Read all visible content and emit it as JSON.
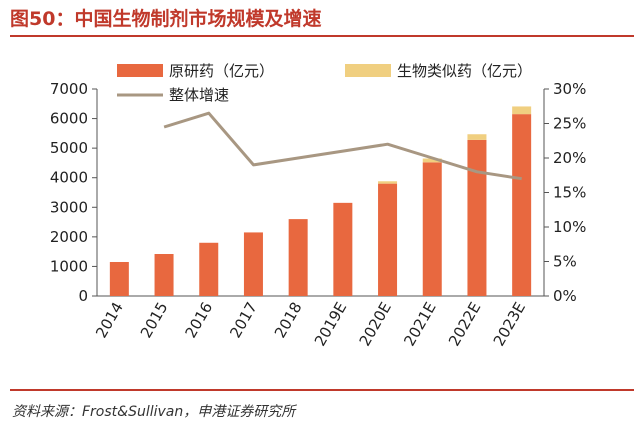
{
  "figure": {
    "title": "图50：中国生物制剂市场规模及增速",
    "source": "资料来源：Frost&Sullivan，申港证券研究所"
  },
  "colors": {
    "accent": "#c0392b",
    "series_original": "#e8683f",
    "series_biosimilar": "#f0cf80",
    "series_growth": "#a89782",
    "axis": "#555555"
  },
  "chart_data": {
    "type": "bar",
    "stacked": true,
    "categories": [
      "2014",
      "2015",
      "2016",
      "2017",
      "2018",
      "2019E",
      "2020E",
      "2021E",
      "2022E",
      "2023E"
    ],
    "series": [
      {
        "name": "原研药（亿元）",
        "kind": "bar",
        "axis": "left",
        "values": [
          1150,
          1420,
          1800,
          2150,
          2600,
          3150,
          3800,
          4520,
          5280,
          6150
        ]
      },
      {
        "name": "生物类似药（亿元）",
        "kind": "bar",
        "axis": "left",
        "values": [
          0,
          0,
          0,
          0,
          0,
          0,
          80,
          130,
          190,
          260
        ]
      },
      {
        "name": "整体增速",
        "kind": "line",
        "axis": "right",
        "values": [
          null,
          24.5,
          26.5,
          19.0,
          20.0,
          21.0,
          22.0,
          20.0,
          18.0,
          17.0
        ]
      }
    ],
    "y_left": {
      "min": 0,
      "max": 7000,
      "ticks": [
        0,
        1000,
        2000,
        3000,
        4000,
        5000,
        6000,
        7000
      ]
    },
    "y_right": {
      "min": 0,
      "max": 30,
      "ticks": [
        "0%",
        "5%",
        "10%",
        "15%",
        "20%",
        "25%",
        "30%"
      ]
    },
    "legend_position": "top"
  }
}
